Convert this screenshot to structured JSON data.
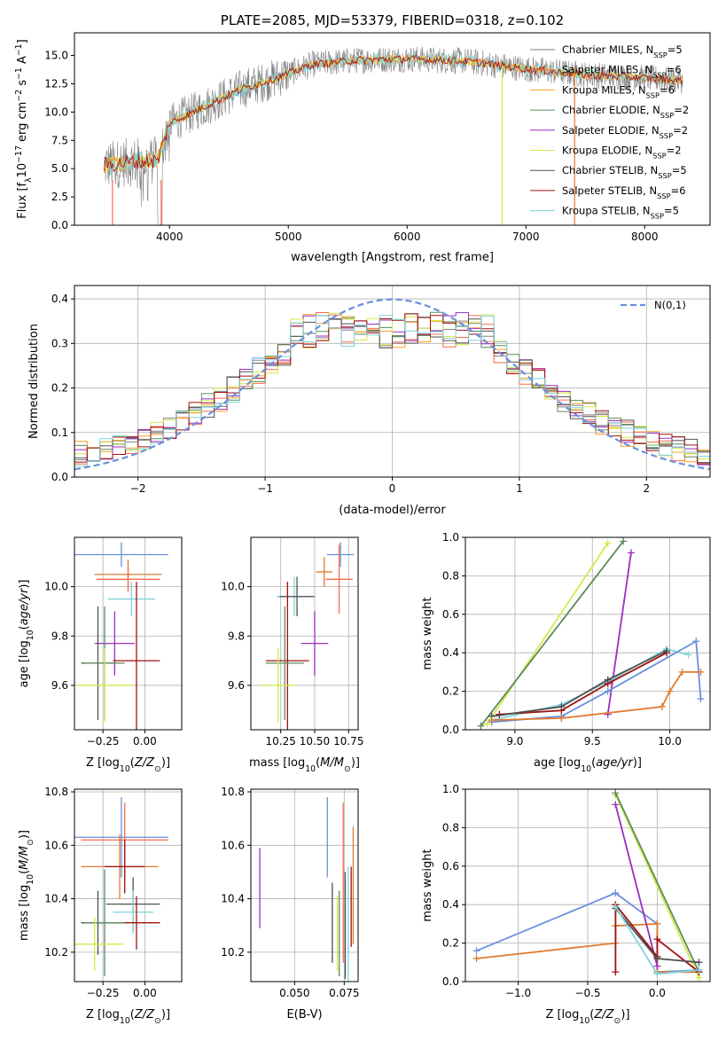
{
  "title": "PLATE=2085, MJD=53379, FIBERID=0318, z=0.102",
  "colors": {
    "Chabrier MILES": "#808080",
    "Salpeter MILES": "#fb6a4a",
    "Kroupa MILES": "#ff9f1c",
    "Chabrier ELODIE": "#5c8a5c",
    "Salpeter ELODIE": "#9a2fbf",
    "Kroupa ELODIE": "#d4e84a",
    "Chabrier STELIB": "#505050",
    "Salpeter STELIB": "#a01010",
    "Kroupa STELIB": "#7fd3dc",
    "blue": "#6a8fdd",
    "orange": "#e07b30",
    "darkred": "#a01010",
    "purple": "#9a2fbf",
    "green": "#5c8a5c",
    "yellow": "#d4e84a",
    "cyan": "#7fd3dc"
  },
  "chart_data": [
    {
      "id": "spectrum",
      "type": "line",
      "title": "PLATE=2085, MJD=53379, FIBERID=0318, z=0.102",
      "xlabel": "wavelength [Angstrom, rest frame]",
      "ylabel": "Flux [f_λ10^-17 erg cm^-2 s^-1 A^-1]",
      "xlim": [
        3200,
        8550
      ],
      "ylim": [
        0,
        17
      ],
      "xticks": [
        4000,
        5000,
        6000,
        7000,
        8000
      ],
      "yticks": [
        0.0,
        2.5,
        5.0,
        7.5,
        10.0,
        12.5,
        15.0
      ],
      "ytick_labels": [
        "0.0",
        "2.5",
        "5.0",
        "7.5",
        "10.0",
        "12.5",
        "15.0"
      ],
      "grid": false,
      "legend_position": "right",
      "continuum_points": [
        [
          3450,
          5.3
        ],
        [
          3700,
          5.6
        ],
        [
          3900,
          5.7
        ],
        [
          4000,
          9.0
        ],
        [
          4300,
          10.5
        ],
        [
          4600,
          12.0
        ],
        [
          4900,
          13.0
        ],
        [
          5200,
          14.2
        ],
        [
          5600,
          14.6
        ],
        [
          6000,
          14.7
        ],
        [
          6500,
          14.5
        ],
        [
          7000,
          13.8
        ],
        [
          7500,
          13.3
        ],
        [
          8000,
          13.0
        ],
        [
          8300,
          12.8
        ]
      ],
      "dropouts": [
        3520,
        3930,
        6800,
        7410
      ],
      "series": [
        {
          "name": "Chabrier MILES, N_SSP=5"
        },
        {
          "name": "Salpeter MILES, N_SSP=6"
        },
        {
          "name": "Kroupa MILES, N_SSP=6"
        },
        {
          "name": "Chabrier ELODIE, N_SSP=2"
        },
        {
          "name": "Salpeter ELODIE, N_SSP=2"
        },
        {
          "name": "Kroupa ELODIE, N_SSP=2"
        },
        {
          "name": "Chabrier STELIB, N_SSP=5"
        },
        {
          "name": "Salpeter STELIB, N_SSP=6"
        },
        {
          "name": "Kroupa STELIB, N_SSP=5"
        }
      ],
      "legend": [
        {
          "label": "Chabrier MILES, N",
          "sub": "SSP",
          "suffix": "=5",
          "key": "Chabrier MILES"
        },
        {
          "label": "Salpeter MILES, N",
          "sub": "SSP",
          "suffix": "=6",
          "key": "Salpeter MILES"
        },
        {
          "label": "Kroupa MILES, N",
          "sub": "SSP",
          "suffix": "=6",
          "key": "Kroupa MILES"
        },
        {
          "label": "Chabrier ELODIE, N",
          "sub": "SSP",
          "suffix": "=2",
          "key": "Chabrier ELODIE"
        },
        {
          "label": "Salpeter ELODIE, N",
          "sub": "SSP",
          "suffix": "=2",
          "key": "Salpeter ELODIE"
        },
        {
          "label": "Kroupa ELODIE, N",
          "sub": "SSP",
          "suffix": "=2",
          "key": "Kroupa ELODIE"
        },
        {
          "label": "Chabrier STELIB, N",
          "sub": "SSP",
          "suffix": "=5",
          "key": "Chabrier STELIB"
        },
        {
          "label": "Salpeter STELIB, N",
          "sub": "SSP",
          "suffix": "=6",
          "key": "Salpeter STELIB"
        },
        {
          "label": "Kroupa STELIB, N",
          "sub": "SSP",
          "suffix": "=5",
          "key": "Kroupa STELIB"
        }
      ]
    },
    {
      "id": "residuals",
      "type": "area",
      "xlabel": "(data-model)/error",
      "ylabel": "Normed distribution",
      "xlim": [
        -2.5,
        2.5
      ],
      "ylim": [
        0,
        0.43
      ],
      "xticks": [
        -2,
        -1,
        0,
        1,
        2
      ],
      "xtick_labels": [
        "−2",
        "−1",
        "0",
        "1",
        "2"
      ],
      "yticks": [
        0.0,
        0.1,
        0.2,
        0.3,
        0.4
      ],
      "ytick_labels": [
        "0.0",
        "0.1",
        "0.2",
        "0.3",
        "0.4"
      ],
      "grid": true,
      "legend_position": "top-right",
      "gaussian_label": "N(0,1)",
      "bins": 50,
      "series": [
        {
          "name": "Chabrier MILES"
        },
        {
          "name": "Salpeter MILES"
        },
        {
          "name": "Kroupa MILES"
        },
        {
          "name": "Chabrier ELODIE"
        },
        {
          "name": "Salpeter ELODIE"
        },
        {
          "name": "Kroupa ELODIE"
        },
        {
          "name": "Chabrier STELIB"
        },
        {
          "name": "Salpeter STELIB"
        },
        {
          "name": "Kroupa STELIB"
        }
      ]
    },
    {
      "id": "age_vs_Z",
      "type": "scatter",
      "xlabel": "Z [log10(Z/Z⊙)]",
      "ylabel": "age [log10(age/yr)]",
      "xlim": [
        -0.42,
        0.22
      ],
      "ylim": [
        9.42,
        10.2
      ],
      "xticks": [
        -0.25,
        0.0
      ],
      "xtick_labels": [
        "−0.25",
        "0.00"
      ],
      "yticks": [
        9.6,
        9.8,
        10.0
      ],
      "ytick_labels": [
        "9.6",
        "9.8",
        "10.0"
      ],
      "grid": true,
      "errorbars": [
        {
          "x": -0.14,
          "xerr": 0.28,
          "y": 10.13,
          "yerr": 0.05,
          "color": "blue"
        },
        {
          "x": -0.1,
          "xerr": 0.2,
          "y": 10.05,
          "yerr": 0.06,
          "color": "orange"
        },
        {
          "x": -0.1,
          "xerr": 0.19,
          "y": 10.03,
          "yerr": 0.05,
          "color": "Salpeter MILES"
        },
        {
          "x": -0.08,
          "xerr": 0.14,
          "y": 9.95,
          "yerr": 0.07,
          "color": "cyan"
        },
        {
          "x": -0.18,
          "xerr": 0.12,
          "y": 9.77,
          "yerr": 0.13,
          "color": "purple"
        },
        {
          "x": -0.05,
          "xerr": 0.14,
          "y": 9.7,
          "yerr": 0.32,
          "color": "darkred"
        },
        {
          "x": -0.28,
          "xerr": 0.1,
          "y": 9.69,
          "yerr": 0.23,
          "color": "Chabrier STELIB"
        },
        {
          "x": -0.24,
          "xerr": 0.12,
          "y": 9.69,
          "yerr": 0.23,
          "color": "green"
        },
        {
          "x": -0.24,
          "xerr": 0.17,
          "y": 9.6,
          "yerr": 0.15,
          "color": "yellow"
        }
      ]
    },
    {
      "id": "age_vs_mass",
      "type": "scatter",
      "xlabel": "mass [log10(M/M⊙)]",
      "ylabel": "",
      "xlim": [
        10.03,
        10.82
      ],
      "ylim": [
        9.42,
        10.2
      ],
      "xticks": [
        10.25,
        10.5,
        10.75
      ],
      "xtick_labels": [
        "10.25",
        "10.50",
        "10.75"
      ],
      "yticks": [
        9.6,
        9.8,
        10.0
      ],
      "ytick_labels": [
        "9.6",
        "9.8",
        "10.0"
      ],
      "grid": true,
      "errorbars": [
        {
          "x": 10.69,
          "xerr": 0.1,
          "y": 10.13,
          "yerr": 0.05,
          "color": "blue"
        },
        {
          "x": 10.57,
          "xerr": 0.06,
          "y": 10.06,
          "yerr": 0.06,
          "color": "orange"
        },
        {
          "x": 10.68,
          "xerr": 0.1,
          "y": 10.03,
          "yerr": 0.14,
          "color": "Salpeter MILES"
        },
        {
          "x": 10.35,
          "xerr": 0.13,
          "y": 9.96,
          "yerr": 0.08,
          "color": "cyan"
        },
        {
          "x": 10.37,
          "xerr": 0.13,
          "y": 9.96,
          "yerr": 0.08,
          "color": "Chabrier STELIB"
        },
        {
          "x": 10.5,
          "xerr": 0.1,
          "y": 9.77,
          "yerr": 0.13,
          "color": "purple"
        },
        {
          "x": 10.3,
          "xerr": 0.16,
          "y": 9.7,
          "yerr": 0.32,
          "color": "darkred"
        },
        {
          "x": 10.28,
          "xerr": 0.14,
          "y": 9.69,
          "yerr": 0.23,
          "color": "green"
        },
        {
          "x": 10.23,
          "xerr": 0.13,
          "y": 9.6,
          "yerr": 0.15,
          "color": "yellow"
        }
      ]
    },
    {
      "id": "massweight_vs_age",
      "type": "line",
      "xlabel": "age [log10(age/yr)]",
      "ylabel": "mass weight",
      "xlim": [
        8.68,
        10.26
      ],
      "ylim": [
        0,
        1.0
      ],
      "xticks": [
        9.0,
        9.5,
        10.0
      ],
      "xtick_labels": [
        "9.0",
        "9.5",
        "10.0"
      ],
      "yticks": [
        0.0,
        0.2,
        0.4,
        0.6,
        0.8,
        1.0
      ],
      "ytick_labels": [
        "0.0",
        "0.2",
        "0.4",
        "0.6",
        "0.8",
        "1.0"
      ],
      "grid": true,
      "series": [
        {
          "color": "yellow",
          "points": [
            [
              8.82,
              0.03
            ],
            [
              9.6,
              0.97
            ]
          ]
        },
        {
          "color": "green",
          "points": [
            [
              8.78,
              0.02
            ],
            [
              9.7,
              0.98
            ]
          ]
        },
        {
          "color": "purple",
          "points": [
            [
              9.6,
              0.08
            ],
            [
              9.75,
              0.92
            ]
          ]
        },
        {
          "color": "cyan",
          "points": [
            [
              8.85,
              0.05
            ],
            [
              9.3,
              0.13
            ],
            [
              9.6,
              0.25
            ],
            [
              9.98,
              0.42
            ],
            [
              10.12,
              0.39
            ]
          ]
        },
        {
          "color": "blue",
          "points": [
            [
              8.85,
              0.04
            ],
            [
              9.3,
              0.07
            ],
            [
              9.6,
              0.2
            ],
            [
              10.17,
              0.46
            ],
            [
              10.2,
              0.16
            ]
          ]
        },
        {
          "color": "darkred",
          "points": [
            [
              8.9,
              0.08
            ],
            [
              9.3,
              0.1
            ],
            [
              9.6,
              0.24
            ],
            [
              9.98,
              0.4
            ]
          ]
        },
        {
          "color": "Chabrier STELIB",
          "points": [
            [
              8.85,
              0.07
            ],
            [
              9.3,
              0.12
            ],
            [
              9.6,
              0.26
            ],
            [
              9.98,
              0.41
            ]
          ]
        },
        {
          "color": "orange",
          "points": [
            [
              8.85,
              0.05
            ],
            [
              9.3,
              0.06
            ],
            [
              9.95,
              0.12
            ],
            [
              10.0,
              0.2
            ],
            [
              10.08,
              0.3
            ],
            [
              10.2,
              0.3
            ]
          ]
        }
      ]
    },
    {
      "id": "mass_vs_Z",
      "type": "scatter",
      "xlabel": "Z [log10(Z/Z⊙)]",
      "ylabel": "mass [log10(M/M⊙)]",
      "xlim": [
        -0.42,
        0.22
      ],
      "ylim": [
        10.09,
        10.81
      ],
      "xticks": [
        -0.25,
        0.0
      ],
      "xtick_labels": [
        "−0.25",
        "0.00"
      ],
      "yticks": [
        10.2,
        10.4,
        10.6,
        10.8
      ],
      "ytick_labels": [
        "10.2",
        "10.4",
        "10.6",
        "10.8"
      ],
      "grid": true,
      "errorbars": [
        {
          "x": -0.14,
          "xerr": 0.28,
          "y": 10.63,
          "yerr": 0.15,
          "color": "blue"
        },
        {
          "x": -0.12,
          "xerr": 0.26,
          "y": 10.62,
          "yerr": 0.14,
          "color": "Salpeter MILES"
        },
        {
          "x": -0.15,
          "xerr": 0.23,
          "y": 10.52,
          "yerr": 0.12,
          "color": "orange"
        },
        {
          "x": -0.12,
          "xerr": 0.12,
          "y": 10.52,
          "yerr": 0.1,
          "color": "darkred"
        },
        {
          "x": -0.07,
          "xerr": 0.16,
          "y": 10.38,
          "yerr": 0.1,
          "color": "Chabrier STELIB"
        },
        {
          "x": -0.07,
          "xerr": 0.12,
          "y": 10.35,
          "yerr": 0.08,
          "color": "cyan"
        },
        {
          "x": -0.05,
          "xerr": 0.14,
          "y": 10.31,
          "yerr": 0.1,
          "color": "darkred"
        },
        {
          "x": -0.28,
          "xerr": 0.1,
          "y": 10.31,
          "yerr": 0.12,
          "color": "Chabrier STELIB"
        },
        {
          "x": -0.24,
          "xerr": 0.12,
          "y": 10.31,
          "yerr": 0.2,
          "color": "green"
        },
        {
          "x": -0.3,
          "xerr": 0.17,
          "y": 10.23,
          "yerr": 0.1,
          "color": "yellow"
        }
      ]
    },
    {
      "id": "mass_vs_EBV",
      "type": "scatter",
      "xlabel": "E(B-V)",
      "ylabel": "",
      "xlim": [
        0.028,
        0.082
      ],
      "ylim": [
        10.09,
        10.81
      ],
      "xticks": [
        0.05,
        0.075
      ],
      "xtick_labels": [
        "0.050",
        "0.075"
      ],
      "yticks": [
        10.2,
        10.4,
        10.6,
        10.8
      ],
      "ytick_labels": [
        "10.2",
        "10.4",
        "10.6",
        "10.8"
      ],
      "grid": true,
      "errorbars": [
        {
          "x": 0.0325,
          "xerr": 0,
          "y": 10.44,
          "yerr": 0.15,
          "color": "purple"
        },
        {
          "x": 0.0665,
          "xerr": 0,
          "y": 10.63,
          "yerr": 0.15,
          "color": "blue"
        },
        {
          "x": 0.069,
          "xerr": 0,
          "y": 10.31,
          "yerr": 0.15,
          "color": "Chabrier STELIB"
        },
        {
          "x": 0.0715,
          "xerr": 0,
          "y": 10.27,
          "yerr": 0.14,
          "color": "yellow"
        },
        {
          "x": 0.0725,
          "xerr": 0,
          "y": 10.27,
          "yerr": 0.16,
          "color": "green"
        },
        {
          "x": 0.0745,
          "xerr": 0,
          "y": 10.46,
          "yerr": 0.3,
          "color": "Salpeter MILES"
        },
        {
          "x": 0.0755,
          "xerr": 0,
          "y": 10.3,
          "yerr": 0.2,
          "color": "Chabrier STELIB"
        },
        {
          "x": 0.077,
          "xerr": 0,
          "y": 10.3,
          "yerr": 0.22,
          "color": "cyan"
        },
        {
          "x": 0.0785,
          "xerr": 0,
          "y": 10.37,
          "yerr": 0.15,
          "color": "darkred"
        },
        {
          "x": 0.0795,
          "xerr": 0,
          "y": 10.45,
          "yerr": 0.22,
          "color": "orange"
        }
      ]
    },
    {
      "id": "massweight_vs_Z",
      "type": "line",
      "xlabel": "Z [log10(Z/Z⊙)]",
      "ylabel": "mass weight",
      "xlim": [
        -1.38,
        0.38
      ],
      "ylim": [
        0,
        1.0
      ],
      "xticks": [
        -1.0,
        -0.5,
        0.0
      ],
      "xtick_labels": [
        "−1.0",
        "−0.5",
        "0.0"
      ],
      "yticks": [
        0.0,
        0.2,
        0.4,
        0.6,
        0.8,
        1.0
      ],
      "ytick_labels": [
        "0.0",
        "0.2",
        "0.4",
        "0.6",
        "0.8",
        "1.0"
      ],
      "grid": true,
      "series": [
        {
          "color": "blue",
          "points": [
            [
              -1.3,
              0.16
            ],
            [
              -0.3,
              0.46
            ],
            [
              0.0,
              0.3
            ],
            [
              0.0,
              0.05
            ],
            [
              0.3,
              0.06
            ]
          ]
        },
        {
          "color": "orange",
          "points": [
            [
              -1.3,
              0.12
            ],
            [
              -0.3,
              0.2
            ],
            [
              -0.3,
              0.29
            ],
            [
              0.0,
              0.3
            ],
            [
              0.0,
              0.05
            ],
            [
              0.3,
              0.05
            ]
          ]
        },
        {
          "color": "yellow",
          "points": [
            [
              -0.3,
              0.97
            ],
            [
              0.3,
              0.02
            ]
          ]
        },
        {
          "color": "green",
          "points": [
            [
              -0.3,
              0.98
            ],
            [
              0.3,
              0.05
            ]
          ]
        },
        {
          "color": "purple",
          "points": [
            [
              -0.3,
              0.92
            ],
            [
              0.0,
              0.08
            ]
          ]
        },
        {
          "color": "darkred",
          "points": [
            [
              -0.3,
              0.05
            ],
            [
              -0.3,
              0.4
            ],
            [
              0.0,
              0.13
            ],
            [
              0.0,
              0.22
            ],
            [
              0.3,
              0.05
            ]
          ]
        },
        {
          "color": "Chabrier STELIB",
          "points": [
            [
              -0.3,
              0.38
            ],
            [
              0.0,
              0.12
            ],
            [
              0.3,
              0.1
            ]
          ]
        },
        {
          "color": "cyan",
          "points": [
            [
              -0.3,
              0.39
            ],
            [
              0.0,
              0.04
            ],
            [
              0.3,
              0.06
            ]
          ]
        }
      ]
    }
  ]
}
